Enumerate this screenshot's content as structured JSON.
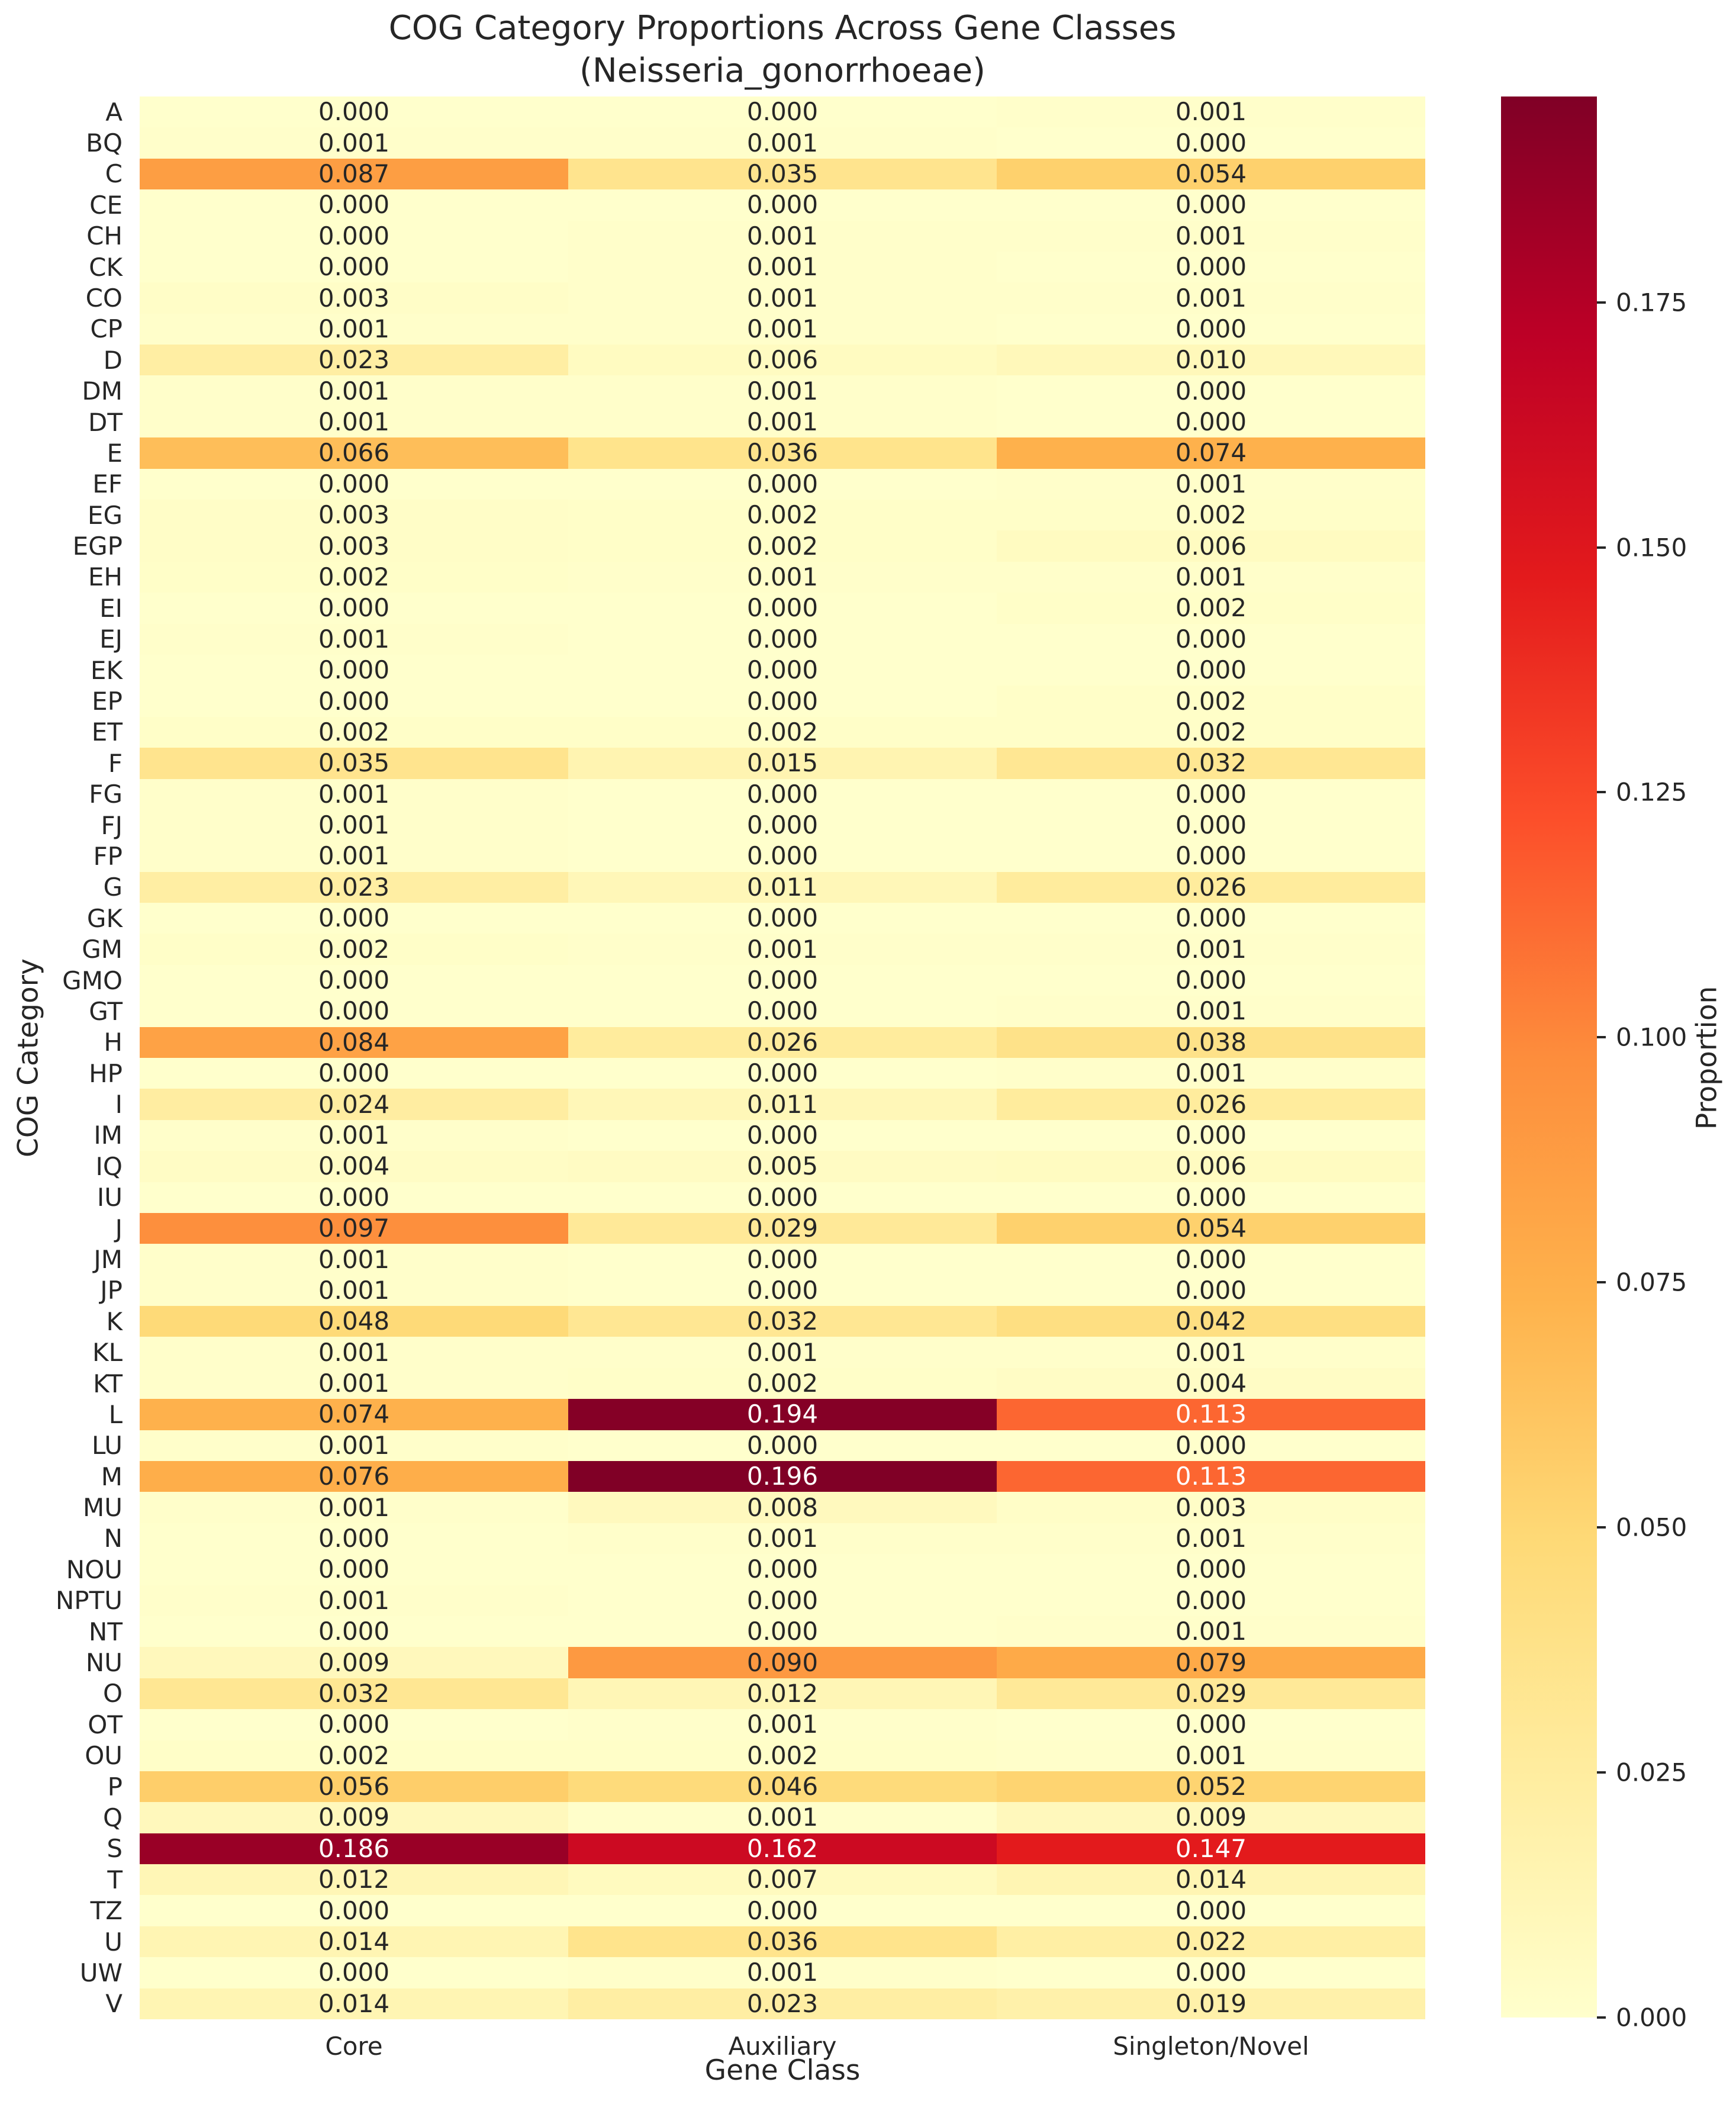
{
  "title": {
    "line1": "COG Category Proportions Across Gene Classes",
    "line2": "(Neisseria_gonorrhoeae)"
  },
  "axes": {
    "xlabel": "Gene Class",
    "ylabel": "COG Category"
  },
  "colorbar": {
    "label": "Proportion",
    "ticks": [
      0.0,
      0.025,
      0.05,
      0.075,
      0.1,
      0.125,
      0.15,
      0.175
    ]
  },
  "colors": {
    "background": "#ffffff",
    "text": "#262626",
    "annotation_dark": "#262626",
    "annotation_light": "#ffffff",
    "ylorrd_stops": [
      "#ffffcc",
      "#ffeda0",
      "#fed976",
      "#feb24c",
      "#fd8d3c",
      "#fc4e2a",
      "#e31a1c",
      "#bd0026",
      "#800026"
    ]
  },
  "chart_data": {
    "type": "heatmap",
    "title": "COG Category Proportions Across Gene Classes (Neisseria_gonorrhoeae)",
    "xlabel": "Gene Class",
    "ylabel": "COG Category",
    "colormap": "YlOrRd",
    "vmin": 0.0,
    "vmax": 0.196,
    "annotations": true,
    "annotation_format": "0.000",
    "legend_position": "right-colorbar",
    "colorbar_label": "Proportion",
    "colorbar_ticks": [
      0.0,
      0.025,
      0.05,
      0.075,
      0.1,
      0.125,
      0.15,
      0.175
    ],
    "columns": [
      "Core",
      "Auxiliary",
      "Singleton/Novel"
    ],
    "rows": [
      "A",
      "BQ",
      "C",
      "CE",
      "CH",
      "CK",
      "CO",
      "CP",
      "D",
      "DM",
      "DT",
      "E",
      "EF",
      "EG",
      "EGP",
      "EH",
      "EI",
      "EJ",
      "EK",
      "EP",
      "ET",
      "F",
      "FG",
      "FJ",
      "FP",
      "G",
      "GK",
      "GM",
      "GMO",
      "GT",
      "H",
      "HP",
      "I",
      "IM",
      "IQ",
      "IU",
      "J",
      "JM",
      "JP",
      "K",
      "KL",
      "KT",
      "L",
      "LU",
      "M",
      "MU",
      "N",
      "NOU",
      "NPTU",
      "NT",
      "NU",
      "O",
      "OT",
      "OU",
      "P",
      "Q",
      "S",
      "T",
      "TZ",
      "U",
      "UW",
      "V"
    ],
    "values": [
      [
        0.0,
        0.0,
        0.001
      ],
      [
        0.001,
        0.001,
        0.0
      ],
      [
        0.087,
        0.035,
        0.054
      ],
      [
        0.0,
        0.0,
        0.0
      ],
      [
        0.0,
        0.001,
        0.001
      ],
      [
        0.0,
        0.001,
        0.0
      ],
      [
        0.003,
        0.001,
        0.001
      ],
      [
        0.001,
        0.001,
        0.0
      ],
      [
        0.023,
        0.006,
        0.01
      ],
      [
        0.001,
        0.001,
        0.0
      ],
      [
        0.001,
        0.001,
        0.0
      ],
      [
        0.066,
        0.036,
        0.074
      ],
      [
        0.0,
        0.0,
        0.001
      ],
      [
        0.003,
        0.002,
        0.002
      ],
      [
        0.003,
        0.002,
        0.006
      ],
      [
        0.002,
        0.001,
        0.001
      ],
      [
        0.0,
        0.0,
        0.002
      ],
      [
        0.001,
        0.0,
        0.0
      ],
      [
        0.0,
        0.0,
        0.0
      ],
      [
        0.0,
        0.0,
        0.002
      ],
      [
        0.002,
        0.002,
        0.002
      ],
      [
        0.035,
        0.015,
        0.032
      ],
      [
        0.001,
        0.0,
        0.0
      ],
      [
        0.001,
        0.0,
        0.0
      ],
      [
        0.001,
        0.0,
        0.0
      ],
      [
        0.023,
        0.011,
        0.026
      ],
      [
        0.0,
        0.0,
        0.0
      ],
      [
        0.002,
        0.001,
        0.001
      ],
      [
        0.0,
        0.0,
        0.0
      ],
      [
        0.0,
        0.0,
        0.001
      ],
      [
        0.084,
        0.026,
        0.038
      ],
      [
        0.0,
        0.0,
        0.001
      ],
      [
        0.024,
        0.011,
        0.026
      ],
      [
        0.001,
        0.0,
        0.0
      ],
      [
        0.004,
        0.005,
        0.006
      ],
      [
        0.0,
        0.0,
        0.0
      ],
      [
        0.097,
        0.029,
        0.054
      ],
      [
        0.001,
        0.0,
        0.0
      ],
      [
        0.001,
        0.0,
        0.0
      ],
      [
        0.048,
        0.032,
        0.042
      ],
      [
        0.001,
        0.001,
        0.001
      ],
      [
        0.001,
        0.002,
        0.004
      ],
      [
        0.074,
        0.194,
        0.113
      ],
      [
        0.001,
        0.0,
        0.0
      ],
      [
        0.076,
        0.196,
        0.113
      ],
      [
        0.001,
        0.008,
        0.003
      ],
      [
        0.0,
        0.001,
        0.001
      ],
      [
        0.0,
        0.0,
        0.0
      ],
      [
        0.001,
        0.0,
        0.0
      ],
      [
        0.0,
        0.0,
        0.001
      ],
      [
        0.009,
        0.09,
        0.079
      ],
      [
        0.032,
        0.012,
        0.029
      ],
      [
        0.0,
        0.001,
        0.0
      ],
      [
        0.002,
        0.002,
        0.001
      ],
      [
        0.056,
        0.046,
        0.052
      ],
      [
        0.009,
        0.001,
        0.009
      ],
      [
        0.186,
        0.162,
        0.147
      ],
      [
        0.012,
        0.007,
        0.014
      ],
      [
        0.0,
        0.0,
        0.0
      ],
      [
        0.014,
        0.036,
        0.022
      ],
      [
        0.0,
        0.001,
        0.0
      ],
      [
        0.014,
        0.023,
        0.019
      ]
    ]
  }
}
